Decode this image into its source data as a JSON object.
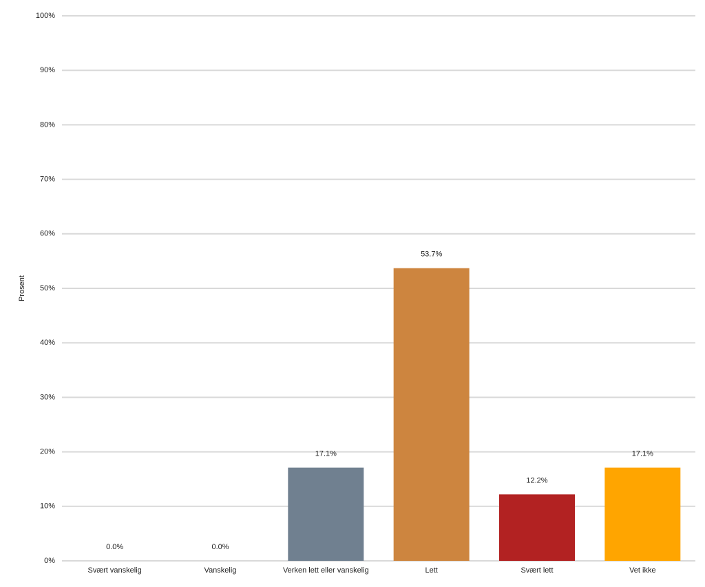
{
  "chart_data": {
    "type": "bar",
    "y_label": "Prosent",
    "categories": [
      "Svært vanskelig",
      "Vanskelig",
      "Verken lett eller vanskelig",
      "Lett",
      "Svært lett",
      "Vet ikke"
    ],
    "values": [
      0,
      0,
      17.1,
      53.7,
      12.2,
      17.1
    ],
    "value_labels": [
      "0.0%",
      "0.0%",
      "17.1%",
      "53.7%",
      "12.2%",
      "17.1%"
    ],
    "colors": [
      "#4f81bd",
      "#c0504d",
      "#708090",
      "#cd853f",
      "#b22222",
      "#ffa500"
    ],
    "ylim": [
      0,
      100
    ],
    "yticks": [
      {
        "value": 0,
        "label": "0%"
      },
      {
        "value": 10,
        "label": "10%"
      },
      {
        "value": 20,
        "label": "20%"
      },
      {
        "value": 30,
        "label": "30%"
      },
      {
        "value": 40,
        "label": "40%"
      },
      {
        "value": 50,
        "label": "50%"
      },
      {
        "value": 60,
        "label": "60%"
      },
      {
        "value": 70,
        "label": "70%"
      },
      {
        "value": 80,
        "label": "80%"
      },
      {
        "value": 90,
        "label": "90%"
      },
      {
        "value": 100,
        "label": "100%"
      }
    ],
    "grid": true
  }
}
